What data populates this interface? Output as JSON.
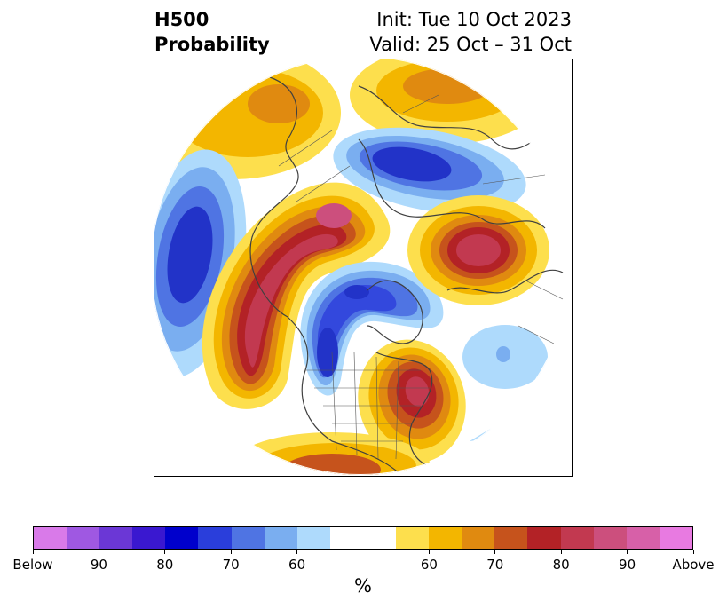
{
  "header": {
    "title_line1": "H500",
    "title_line2": "Probability",
    "init": "Init: Tue 10 Oct 2023",
    "valid": "Valid: 25 Oct – 31 Oct"
  },
  "map": {
    "region": "North Hemisphere polar stereographic view of North America and the Arctic",
    "palette": {
      "below_90plus": "#2233c8",
      "below_80": "#3348dd",
      "below_70": "#4f74e3",
      "below_60": "#7aaef0",
      "below_50": "#aedafc",
      "neutral": "#ffffff",
      "above_50": "#fddf4d",
      "above_60": "#f3b600",
      "above_70": "#e08a10",
      "above_80": "#c6531c",
      "above_90": "#b32226",
      "above_100": "#c23950",
      "above_top": "#cc4f7d"
    }
  },
  "colorbar": {
    "colors": [
      "#d97ae9",
      "#9f58e2",
      "#6b37d6",
      "#3a18d0",
      "#0000cc",
      "#2a3edb",
      "#4f74e3",
      "#7aaef0",
      "#aedafc",
      "#ffffff",
      "#ffffff",
      "#fddf4d",
      "#f3b600",
      "#e08a10",
      "#c6531c",
      "#b32226",
      "#c23950",
      "#cc4f7d",
      "#d760a8",
      "#e87ae1"
    ],
    "labels": [
      "Below",
      "90",
      "80",
      "70",
      "60",
      "60",
      "70",
      "80",
      "90",
      "Above"
    ],
    "unit": "%"
  }
}
